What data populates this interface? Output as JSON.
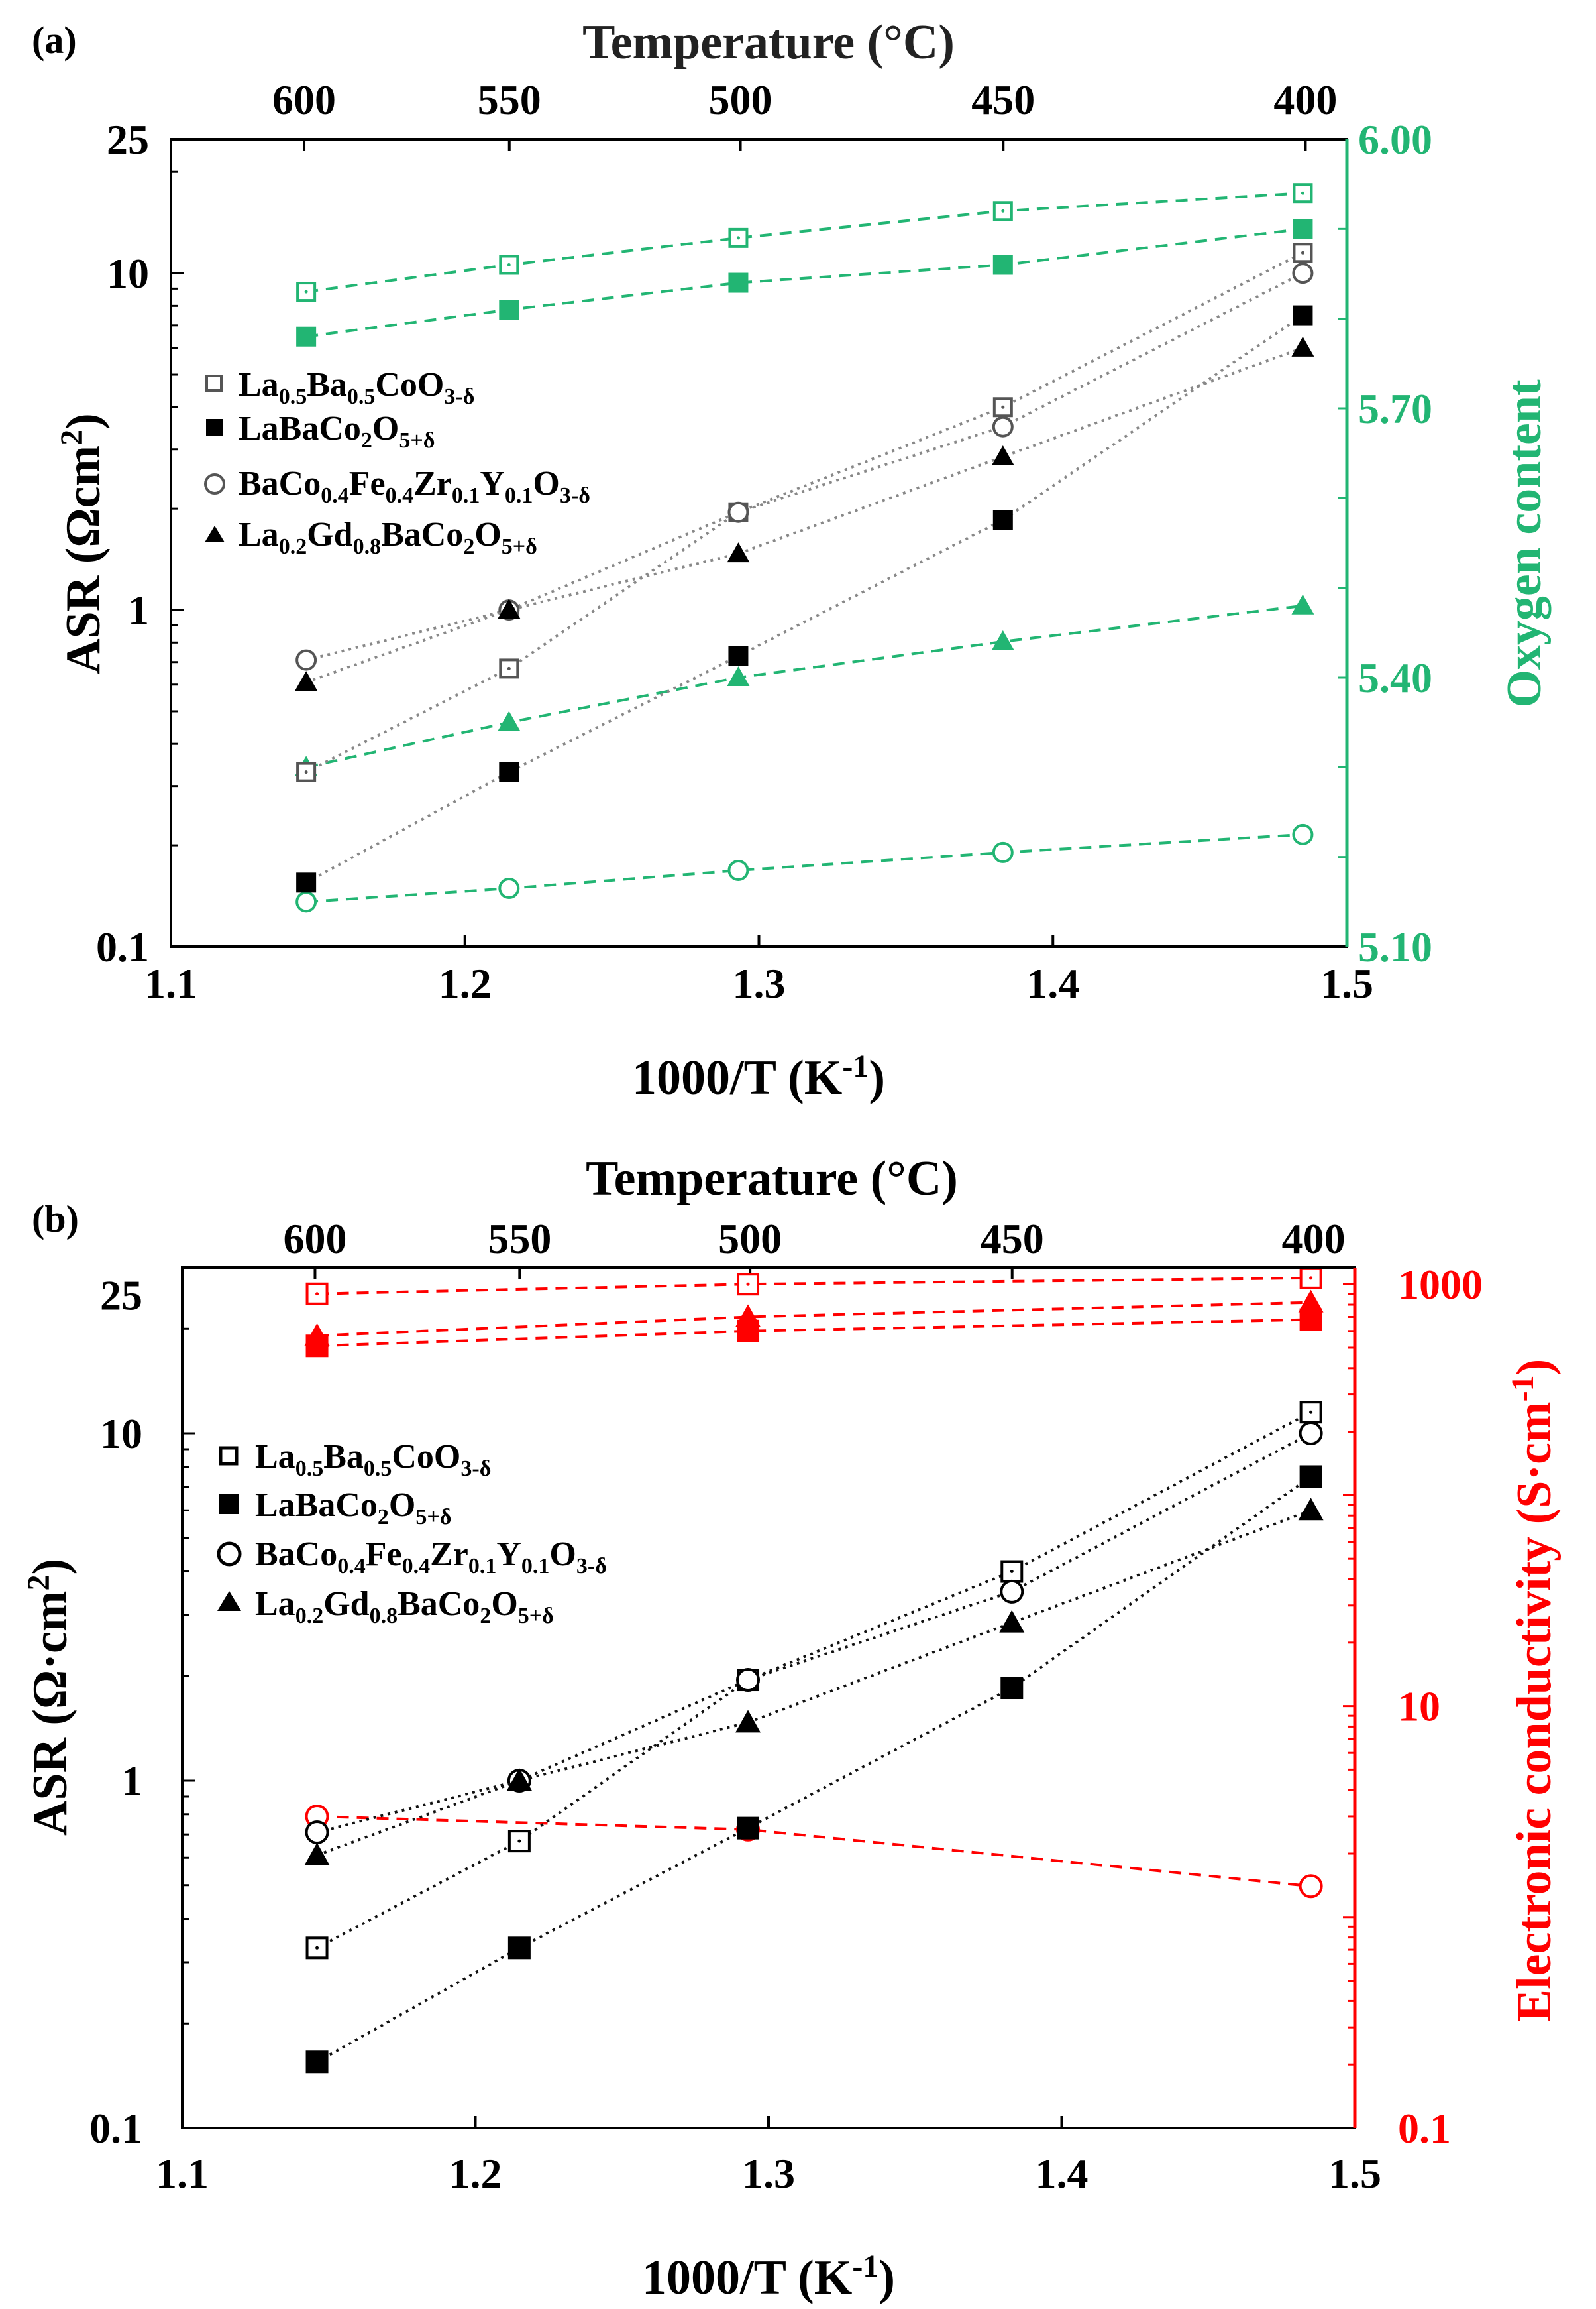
{
  "chart_data": [
    {
      "type": "scatter",
      "panel_label": "(a)",
      "x_axis": {
        "label": "1000/T (K",
        "label_sup": "-1",
        "label_end": ")",
        "range": [
          1.1,
          1.5
        ],
        "ticks": [
          "1.1",
          "1.2",
          "1.3",
          "1.4",
          "1.5"
        ]
      },
      "top_axis": {
        "label": "Temperature (°C)",
        "ticks": [
          "600",
          "550",
          "500",
          "450",
          "400"
        ],
        "tick_positions": [
          1.1453,
          1.2151,
          1.2937,
          1.3831,
          1.4859
        ]
      },
      "y_left": {
        "label": "ASR (Ωcm",
        "label_sup": "2",
        "label_end": ")",
        "scale": "log",
        "range": [
          0.1,
          25
        ],
        "ticks": [
          "0.1",
          "1",
          "10",
          "25"
        ]
      },
      "y_right": {
        "label": "Oxygen content",
        "scale": "linear",
        "range": [
          5.1,
          6.0
        ],
        "ticks": [
          "5.10",
          "5.40",
          "5.70",
          "6.00"
        ],
        "color": "#22b573"
      },
      "legend": {
        "placement": "upper-left",
        "entries": [
          {
            "text": "La",
            "s1": "0.5",
            "t2": "Ba",
            "s2": "0.5",
            "t3": "CoO",
            "s3": "3-δ",
            "marker": "square-open"
          },
          {
            "text": "LaBaCo",
            "s1": "2",
            "t2": "O",
            "s2": "5+δ",
            "t3": "",
            "s3": "",
            "marker": "square-filled"
          },
          {
            "text": "BaCo",
            "s1": "0.4",
            "t2": "Fe",
            "s2": "0.4",
            "t3": "Zr",
            "s3": "0.1",
            "t4": "Y",
            "s4": "0.1",
            "t5": "O",
            "s5": "3-δ",
            "marker": "circle-open"
          },
          {
            "text": "La",
            "s1": "0.2",
            "t2": "Gd",
            "s2": "0.8",
            "t3": "BaCo",
            "s3": "2",
            "t4": "O",
            "s4": "5+δ",
            "marker": "triangle-filled"
          }
        ]
      },
      "asr_series": [
        {
          "name": "La0.5Ba0.5CoO3-δ",
          "marker": "square-open",
          "x": [
            1.146,
            1.215,
            1.293,
            1.383,
            1.485
          ],
          "y": [
            0.33,
            0.67,
            1.95,
            4.0,
            11.5
          ]
        },
        {
          "name": "LaBaCo2O5+δ",
          "marker": "square-filled",
          "x": [
            1.146,
            1.215,
            1.293,
            1.383,
            1.485
          ],
          "y": [
            0.155,
            0.33,
            0.73,
            1.85,
            7.5
          ]
        },
        {
          "name": "BaCo0.4Fe0.4Zr0.1Y0.1O3-δ",
          "marker": "circle-open",
          "x": [
            1.146,
            1.215,
            1.293,
            1.383,
            1.485
          ],
          "y": [
            0.71,
            1.0,
            1.95,
            3.5,
            10.0
          ]
        },
        {
          "name": "La0.2Gd0.8BaCo2O5+δ",
          "marker": "triangle-filled",
          "x": [
            1.146,
            1.215,
            1.293,
            1.383,
            1.485
          ],
          "y": [
            0.61,
            1.0,
            1.47,
            2.85,
            6.0
          ]
        }
      ],
      "right_series": [
        {
          "name": "La0.5Ba0.5CoO3-δ oxygen content",
          "marker": "square-open",
          "x": [
            1.146,
            1.215,
            1.293,
            1.383,
            1.485
          ],
          "y": [
            5.83,
            5.86,
            5.89,
            5.92,
            5.94
          ]
        },
        {
          "name": "LaBaCo2O5+δ oxygen content",
          "marker": "square-filled",
          "x": [
            1.146,
            1.215,
            1.293,
            1.383,
            1.485
          ],
          "y": [
            5.78,
            5.81,
            5.84,
            5.86,
            5.9
          ]
        },
        {
          "name": "La0.2Gd0.8BaCo2O5+δ oxygen content",
          "marker": "triangle-filled",
          "x": [
            1.146,
            1.215,
            1.293,
            1.383,
            1.485
          ],
          "y": [
            5.3,
            5.35,
            5.4,
            5.44,
            5.48
          ]
        },
        {
          "name": "BaCo0.4Fe0.4Zr0.1Y0.1O3-δ oxygen content",
          "marker": "circle-open",
          "x": [
            1.146,
            1.215,
            1.293,
            1.383,
            1.485
          ],
          "y": [
            5.15,
            5.165,
            5.185,
            5.205,
            5.225
          ]
        }
      ]
    },
    {
      "type": "scatter",
      "panel_label": "(b)",
      "x_axis": {
        "label": "1000/T (K",
        "label_sup": "-1",
        "label_end": ")",
        "range": [
          1.1,
          1.5
        ],
        "ticks": [
          "1.1",
          "1.2",
          "1.3",
          "1.4",
          "1.5"
        ]
      },
      "top_axis": {
        "label": "Temperature (°C)",
        "ticks": [
          "600",
          "550",
          "500",
          "450",
          "400"
        ],
        "tick_positions": [
          1.1453,
          1.2151,
          1.2937,
          1.3831,
          1.4859
        ]
      },
      "y_left": {
        "label": "ASR (Ω·cm",
        "label_sup": "2",
        "label_end": ")",
        "scale": "log",
        "range": [
          0.1,
          30
        ],
        "ticks": [
          "0.1",
          "1",
          "10",
          "25"
        ]
      },
      "y_right": {
        "label": "Electronic conductivity (S·cm",
        "label_sup": "-1",
        "label_end": ")",
        "scale": "log",
        "range": [
          0.1,
          1200
        ],
        "ticks": [
          "0.1",
          "10",
          "1000"
        ],
        "color": "#ff0000"
      },
      "legend": {
        "placement": "upper-left",
        "entries": [
          {
            "text": "La",
            "s1": "0.5",
            "t2": "Ba",
            "s2": "0.5",
            "t3": "CoO",
            "s3": "3-δ",
            "marker": "square-open"
          },
          {
            "text": "LaBaCo",
            "s1": "2",
            "t2": "O",
            "s2": "5+δ",
            "t3": "",
            "s3": "",
            "marker": "square-filled"
          },
          {
            "text": "BaCo",
            "s1": "0.4",
            "t2": "Fe",
            "s2": "0.4",
            "t3": "Zr",
            "s3": "0.1",
            "t4": "Y",
            "s4": "0.1",
            "t5": "O",
            "s5": "3-δ",
            "marker": "circle-open"
          },
          {
            "text": "La",
            "s1": "0.2",
            "t2": "Gd",
            "s2": "0.8",
            "t3": "BaCo",
            "s3": "2",
            "t4": "O",
            "s4": "5+δ",
            "marker": "triangle-filled"
          }
        ]
      },
      "asr_series": [
        {
          "name": "La0.5Ba0.5CoO3-δ",
          "marker": "square-open",
          "x": [
            1.146,
            1.215,
            1.293,
            1.383,
            1.485
          ],
          "y": [
            0.33,
            0.67,
            1.95,
            4.0,
            11.5
          ]
        },
        {
          "name": "LaBaCo2O5+δ",
          "marker": "square-filled",
          "x": [
            1.146,
            1.215,
            1.293,
            1.383,
            1.485
          ],
          "y": [
            0.155,
            0.33,
            0.73,
            1.85,
            7.5
          ]
        },
        {
          "name": "BaCo0.4Fe0.4Zr0.1Y0.1O3-δ",
          "marker": "circle-open",
          "x": [
            1.146,
            1.215,
            1.293,
            1.383,
            1.485
          ],
          "y": [
            0.71,
            1.0,
            1.95,
            3.5,
            10.0
          ]
        },
        {
          "name": "La0.2Gd0.8BaCo2O5+δ",
          "marker": "triangle-filled",
          "x": [
            1.146,
            1.215,
            1.293,
            1.383,
            1.485
          ],
          "y": [
            0.61,
            1.0,
            1.47,
            2.85,
            6.0
          ]
        }
      ],
      "right_series": [
        {
          "name": "La0.5Ba0.5CoO3-δ conductivity",
          "marker": "square-open",
          "x": [
            1.146,
            1.293,
            1.485
          ],
          "y": [
            900,
            1000,
            1070
          ]
        },
        {
          "name": "La0.2Gd0.8BaCo2O5+δ conductivity",
          "marker": "triangle-filled",
          "x": [
            1.146,
            1.293,
            1.485
          ],
          "y": [
            570,
            700,
            820
          ]
        },
        {
          "name": "LaBaCo2O5+δ conductivity",
          "marker": "square-filled",
          "x": [
            1.146,
            1.293,
            1.485
          ],
          "y": [
            510,
            600,
            680
          ]
        },
        {
          "name": "BaCo0.4Fe0.4Zr0.1Y0.1O3-δ conductivity",
          "marker": "circle-open",
          "x": [
            1.146,
            1.293,
            1.485
          ],
          "y": [
            3.0,
            2.6,
            1.4
          ]
        }
      ]
    }
  ]
}
